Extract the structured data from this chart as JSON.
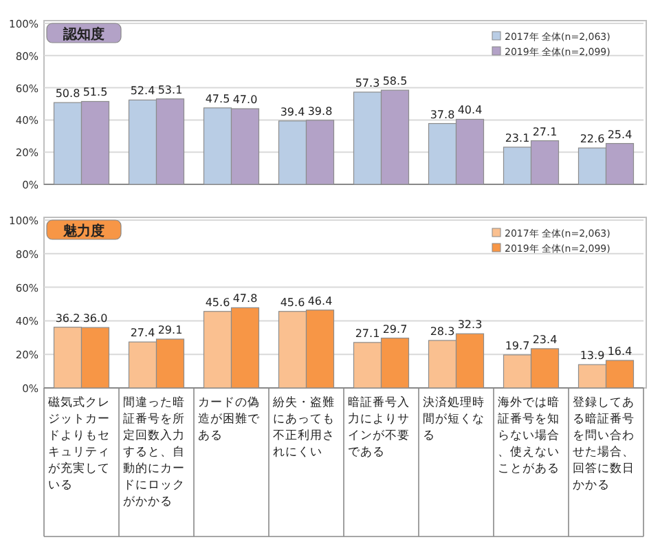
{
  "chart_data": [
    {
      "type": "bar",
      "title": "認知度",
      "categories": [
        null,
        null,
        null,
        null,
        null,
        null,
        null,
        null
      ],
      "series": [
        {
          "name": "2017年 全体(n=2,063)",
          "color": "#b9cde5",
          "values": [
            50.8,
            52.4,
            47.5,
            39.4,
            57.3,
            37.8,
            23.1,
            22.6
          ],
          "value_labels": [
            "50.8",
            "52.4",
            "47.5",
            "39.4",
            "57.3",
            "37.8",
            "23.1",
            "22.6"
          ]
        },
        {
          "name": "2019年 全体(n=2,099)",
          "color": "#b3a2c7",
          "values": [
            51.5,
            53.1,
            47.0,
            39.8,
            58.5,
            40.4,
            27.1,
            25.4
          ],
          "value_labels": [
            "51.5",
            "53.1",
            "47.0",
            "39.8",
            "58.5",
            "40.4",
            "27.1",
            "25.4"
          ]
        }
      ],
      "ylim": [
        0,
        100
      ],
      "yticks": [
        {
          "value": 0,
          "label": "0%"
        },
        {
          "value": 20,
          "label": "20%"
        },
        {
          "value": 40,
          "label": "40%"
        },
        {
          "value": 60,
          "label": "60%"
        },
        {
          "value": 80,
          "label": "80%"
        },
        {
          "value": 100,
          "label": "100%"
        }
      ],
      "grid": "y",
      "legend": "top right",
      "data_labels": true,
      "tick_labels": "y"
    },
    {
      "type": "bar",
      "title": "魅力度",
      "categories": [
        "磁気式クレジットカードよりもセキュリティが充実している",
        "間違った暗証番号を所定回数入力すると、自動的にカードにロックがかかる",
        "カードの偽造が困難である",
        "紛失・盗難にあっても不正利用されにくい",
        "暗証番号入力によりサインが不要である",
        "決済処理時間が短くなる",
        "海外では暗証番号を知らない場合、使えないことがある",
        "登録してある暗証番号を問い合わせた場合、回答に数日かかる"
      ],
      "series": [
        {
          "name": "2017年 全体(n=2,063)",
          "color": "#fac090",
          "values": [
            36.2,
            27.4,
            45.6,
            45.6,
            27.1,
            28.3,
            19.7,
            13.9
          ],
          "value_labels": [
            "36.2",
            "27.4",
            "45.6",
            "45.6",
            "27.1",
            "28.3",
            "19.7",
            "13.9"
          ]
        },
        {
          "name": "2019年 全体(n=2,099)",
          "color": "#f79646",
          "values": [
            36.0,
            29.1,
            47.8,
            46.4,
            29.7,
            32.3,
            23.4,
            16.4
          ],
          "value_labels": [
            "36.0",
            "29.1",
            "47.8",
            "46.4",
            "29.7",
            "32.3",
            "23.4",
            "16.4"
          ]
        }
      ],
      "ylim": [
        0,
        100
      ],
      "yticks": [
        {
          "value": 0,
          "label": "0%"
        },
        {
          "value": 20,
          "label": "20%"
        },
        {
          "value": 40,
          "label": "40%"
        },
        {
          "value": 60,
          "label": "60%"
        },
        {
          "value": 80,
          "label": "80%"
        },
        {
          "value": 100,
          "label": "100%"
        }
      ],
      "grid": "y",
      "legend": "top right",
      "data_labels": true
    }
  ]
}
